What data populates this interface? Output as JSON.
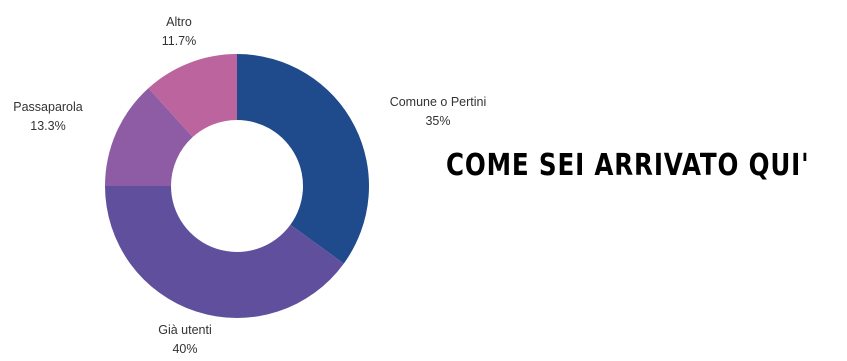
{
  "chart_data": {
    "type": "pie",
    "title": "COME SEI ARRIVATO QUI'",
    "slices": [
      {
        "label": "Comune o Pertini",
        "value_text": "35%",
        "value": 35,
        "color": "#1f4a8c"
      },
      {
        "label": "Già utenti",
        "value_text": "40%",
        "value": 40,
        "color": "#5f4f9c"
      },
      {
        "label": "Passaparola",
        "value_text": "13.3%",
        "value": 13.3,
        "color": "#8d5ca4"
      },
      {
        "label": "Altro",
        "value_text": "11.7%",
        "value": 11.7,
        "color": "#bc649e"
      }
    ]
  }
}
